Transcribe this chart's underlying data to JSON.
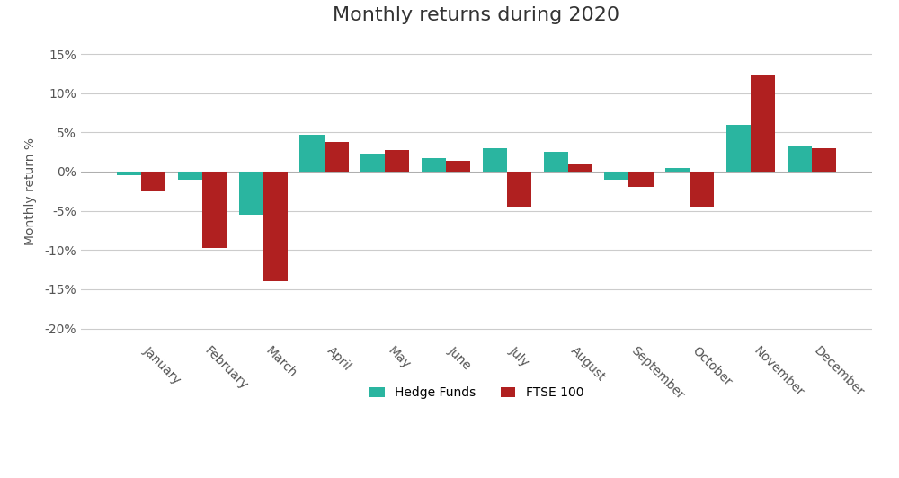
{
  "title": "Monthly returns during 2020",
  "ylabel": "Monthly return %",
  "months": [
    "January",
    "February",
    "March",
    "April",
    "May",
    "June",
    "July",
    "August",
    "September",
    "October",
    "November",
    "December"
  ],
  "hedge_funds": [
    -0.5,
    -1.0,
    -5.5,
    4.7,
    2.3,
    1.7,
    3.0,
    2.5,
    -1.0,
    0.5,
    6.0,
    3.3
  ],
  "ftse100": [
    -2.5,
    -9.7,
    -14.0,
    3.8,
    2.7,
    1.4,
    -4.5,
    1.0,
    -2.0,
    -4.5,
    12.2,
    3.0
  ],
  "hedge_color": "#2ab5a0",
  "ftse_color": "#b02020",
  "legend_labels": [
    "Hedge Funds",
    "FTSE 100"
  ],
  "ylim": [
    -22,
    17
  ],
  "yticks": [
    -20,
    -15,
    -10,
    -5,
    0,
    5,
    10,
    15
  ],
  "ytick_labels": [
    "-20%",
    "-15%",
    "-10%",
    "-5%",
    "0%",
    "5%",
    "10%",
    "15%"
  ],
  "background_color": "#ffffff",
  "title_fontsize": 16,
  "axis_fontsize": 10,
  "tick_fontsize": 10,
  "bar_width": 0.4
}
